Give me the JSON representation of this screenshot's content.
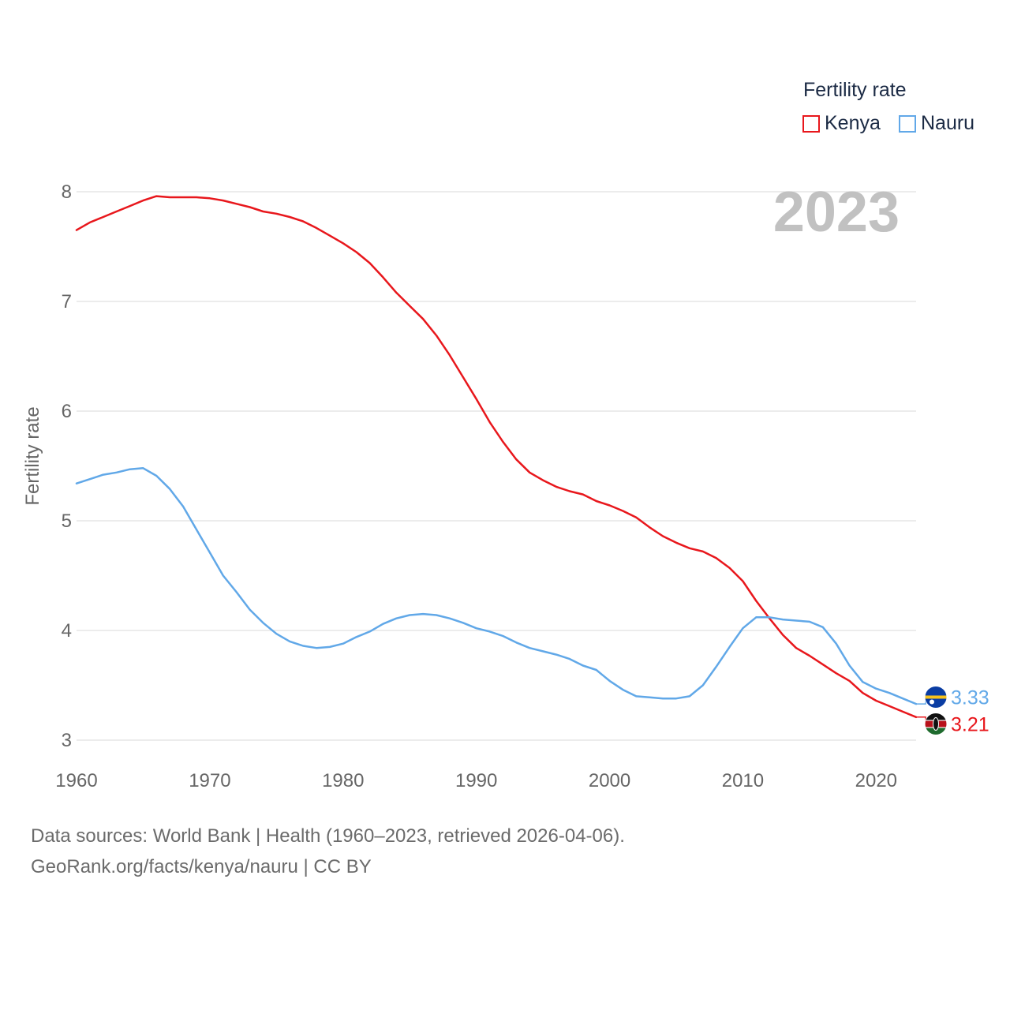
{
  "legend": {
    "title": "Fertility rate",
    "items": [
      {
        "label": "Kenya",
        "color": "#e8171c"
      },
      {
        "label": "Nauru",
        "color": "#61a8e8"
      }
    ]
  },
  "year_label": "2023",
  "source": {
    "line1": "Data sources: World Bank | Health (1960–2023, retrieved 2026-04-06).",
    "line2": "GeoRank.org/facts/kenya/nauru | CC BY"
  },
  "chart_data": {
    "type": "line",
    "title": "",
    "xlabel": "",
    "ylabel": "Fertility rate",
    "xlim": [
      1960,
      2023
    ],
    "ylim": [
      3,
      8
    ],
    "x_ticks": [
      1960,
      1970,
      1980,
      1990,
      2000,
      2010,
      2020
    ],
    "y_ticks": [
      3,
      4,
      5,
      6,
      7,
      8
    ],
    "grid": true,
    "legend_position": "top-right",
    "x": [
      1960,
      1961,
      1962,
      1963,
      1964,
      1965,
      1966,
      1967,
      1968,
      1969,
      1970,
      1971,
      1972,
      1973,
      1974,
      1975,
      1976,
      1977,
      1978,
      1979,
      1980,
      1981,
      1982,
      1983,
      1984,
      1985,
      1986,
      1987,
      1988,
      1989,
      1990,
      1991,
      1992,
      1993,
      1994,
      1995,
      1996,
      1997,
      1998,
      1999,
      2000,
      2001,
      2002,
      2003,
      2004,
      2005,
      2006,
      2007,
      2008,
      2009,
      2010,
      2011,
      2012,
      2013,
      2014,
      2015,
      2016,
      2017,
      2018,
      2019,
      2020,
      2021,
      2022,
      2023
    ],
    "series": [
      {
        "name": "Kenya",
        "color": "#e8171c",
        "end_label": "3.21",
        "values": [
          7.65,
          7.72,
          7.77,
          7.82,
          7.87,
          7.92,
          7.96,
          7.95,
          7.95,
          7.95,
          7.94,
          7.92,
          7.89,
          7.86,
          7.82,
          7.8,
          7.77,
          7.73,
          7.67,
          7.6,
          7.53,
          7.45,
          7.35,
          7.22,
          7.08,
          6.96,
          6.84,
          6.69,
          6.51,
          6.31,
          6.11,
          5.9,
          5.72,
          5.56,
          5.44,
          5.37,
          5.31,
          5.27,
          5.24,
          5.18,
          5.14,
          5.09,
          5.03,
          4.94,
          4.86,
          4.8,
          4.75,
          4.72,
          4.66,
          4.57,
          4.45,
          4.27,
          4.11,
          3.96,
          3.84,
          3.77,
          3.69,
          3.61,
          3.54,
          3.43,
          3.36,
          3.31,
          3.26,
          3.21
        ]
      },
      {
        "name": "Nauru",
        "color": "#61a8e8",
        "end_label": "3.33",
        "values": [
          5.34,
          5.38,
          5.42,
          5.44,
          5.47,
          5.48,
          5.41,
          5.29,
          5.13,
          4.92,
          4.71,
          4.5,
          4.35,
          4.19,
          4.07,
          3.97,
          3.9,
          3.86,
          3.84,
          3.85,
          3.88,
          3.94,
          3.99,
          4.06,
          4.11,
          4.14,
          4.15,
          4.14,
          4.11,
          4.07,
          4.02,
          3.99,
          3.95,
          3.89,
          3.84,
          3.81,
          3.78,
          3.74,
          3.68,
          3.64,
          3.54,
          3.46,
          3.4,
          3.39,
          3.38,
          3.38,
          3.4,
          3.5,
          3.67,
          3.85,
          4.02,
          4.12,
          4.12,
          4.1,
          4.09,
          4.08,
          4.03,
          3.88,
          3.68,
          3.53,
          3.47,
          3.43,
          3.38,
          3.33
        ]
      }
    ]
  }
}
